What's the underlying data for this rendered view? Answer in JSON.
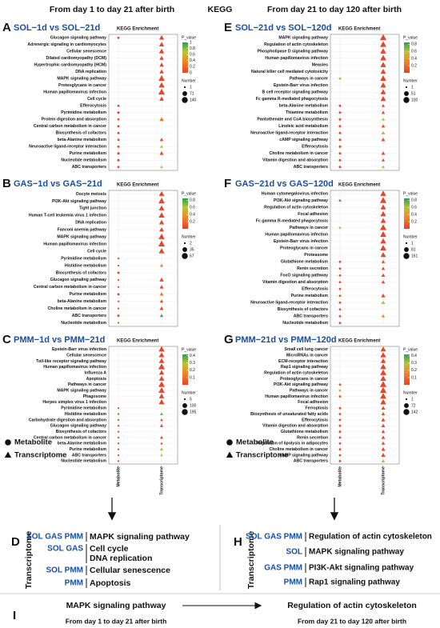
{
  "header": {
    "left": "From day 1 to day 21 after birth",
    "center": "KEGG",
    "right": "From day 21 to day 120 after birth"
  },
  "chart_data": [
    {
      "type": "dotplot",
      "letter": "A",
      "title": "SOL−1d vs SOL−21d",
      "subtitle": "KEGG Enrichment",
      "categories": [
        "Glucagon signaling pathway",
        "Adrenergic signaling in cardiomyocytes",
        "Cellular senescence",
        "Dilated cardiomyopathy (DCM)",
        "Hypertrophic cardiomyopathy (HCM)",
        "DNA replication",
        "MAPK signaling pathway",
        "Proteoglycans in cancer",
        "Human papillomavirus infection",
        "Cell cycle",
        "Efferocytosis",
        "Pyrimidine metabolism",
        "Protein digestion and absorption",
        "Central carbon metabolism in cancer",
        "Biosynthesis of cofactors",
        "beta-Alanine metabolism",
        "Neuroactive ligand-receptor interaction",
        "Purine metabolism",
        "Nucleotide metabolism",
        "ABC transporters"
      ],
      "series": [
        {
          "name": "Metabolite",
          "shape": "circle",
          "values": [
            3,
            null,
            null,
            null,
            null,
            null,
            null,
            null,
            null,
            null,
            2,
            4,
            2,
            3,
            3,
            2,
            3,
            4,
            4,
            3
          ],
          "p_values": [
            0.03,
            null,
            null,
            null,
            null,
            null,
            null,
            null,
            null,
            null,
            0.03,
            0.02,
            0.03,
            0.03,
            0.03,
            0.04,
            0.04,
            0.02,
            0.02,
            0.03
          ]
        },
        {
          "name": "Transcriptome",
          "shape": "triangle",
          "values": [
            60,
            60,
            70,
            40,
            40,
            40,
            120,
            100,
            140,
            50,
            null,
            null,
            40,
            null,
            null,
            20,
            15,
            30,
            null,
            10
          ],
          "p_values": [
            0.02,
            0.02,
            0.02,
            0.02,
            0.02,
            0.02,
            0.02,
            0.02,
            0.02,
            0.02,
            null,
            null,
            0.3,
            null,
            null,
            0.05,
            0.7,
            0.05,
            null,
            0.7
          ]
        }
      ],
      "color_label": "P_value",
      "p_lim": [
        0,
        1
      ],
      "p_ticks": [
        1,
        0.8,
        0.6,
        0.4,
        0.2,
        0
      ],
      "size_label": "Number",
      "size_ticks": [
        1,
        71,
        140
      ]
    },
    {
      "type": "dotplot",
      "letter": "B",
      "title": "GAS−1d vs GAS−21d",
      "subtitle": "KEGG Enrichment",
      "categories": [
        "Oocyte meiosis",
        "PI3K-Akt signaling pathway",
        "Tight junction",
        "Human T-cell leukemia virus 1 infection",
        "DNA replication",
        "Fanconi anemia pathway",
        "MAPK signaling pathway",
        "Human papillomavirus infection",
        "Cell cycle",
        "Pyrimidine metabolism",
        "Histidine metabolism",
        "Biosynthesis of cofactors",
        "Glucagon signaling pathway",
        "Central carbon metabolism in cancer",
        "Purine metabolism",
        "beta-Alanine metabolism",
        "Choline metabolism in cancer",
        "ABC transporters",
        "Nucleotide metabolism"
      ],
      "series": [
        {
          "name": "Metabolite",
          "shape": "circle",
          "values": [
            null,
            null,
            null,
            null,
            null,
            null,
            null,
            null,
            null,
            2,
            2,
            3,
            2,
            2,
            3,
            2,
            2,
            3,
            2
          ],
          "p_values": [
            null,
            null,
            null,
            null,
            null,
            null,
            null,
            null,
            null,
            0.03,
            0.03,
            0.03,
            0.04,
            0.04,
            0.03,
            0.04,
            0.04,
            0.03,
            0.03
          ]
        },
        {
          "name": "Transcriptome",
          "shape": "triangle",
          "values": [
            35,
            60,
            40,
            50,
            30,
            25,
            55,
            67,
            45,
            null,
            8,
            null,
            20,
            15,
            15,
            10,
            15,
            10,
            null
          ],
          "p_values": [
            0.02,
            0.02,
            0.02,
            0.02,
            0.02,
            0.02,
            0.02,
            0.02,
            0.02,
            null,
            0.3,
            null,
            0.05,
            0.05,
            0.3,
            0.05,
            0.05,
            0.8,
            null
          ]
        }
      ],
      "color_label": "P_value",
      "p_lim": [
        0,
        0.85
      ],
      "p_ticks": [
        0.8,
        0.6,
        0.4,
        0.2
      ],
      "size_label": "Number",
      "size_ticks": [
        2,
        35,
        67
      ]
    },
    {
      "type": "dotplot",
      "letter": "C",
      "title": "PMM−1d vs PMM−21d",
      "subtitle": "KEGG Enrichment",
      "categories": [
        "Epstein-Barr virus infection",
        "Cellular senescence",
        "Toll-like receptor signaling pathway",
        "Human papillomavirus infection",
        "Influenza A",
        "Apoptosis",
        "Pathways in cancer",
        "MAPK signaling pathway",
        "Phagosome",
        "Herpes simplex virus 1 infection",
        "Pyrimidine metabolism",
        "Histidine metabolism",
        "Carbohydrate digestion and absorption",
        "Glucagon signaling pathway",
        "Biosynthesis of cofactors",
        "Central carbon metabolism in cancer",
        "beta-Alanine metabolism",
        "Purine metabolism",
        "ABC transporters",
        "Nucleotide metabolism"
      ],
      "series": [
        {
          "name": "Metabolite",
          "shape": "circle",
          "values": [
            null,
            null,
            null,
            null,
            null,
            null,
            null,
            null,
            null,
            null,
            5,
            5,
            5,
            5,
            5,
            5,
            5,
            5,
            5,
            5
          ],
          "p_values": [
            null,
            null,
            null,
            null,
            null,
            null,
            null,
            null,
            null,
            null,
            0.02,
            0.02,
            0.02,
            0.02,
            0.02,
            0.02,
            0.02,
            0.02,
            0.02,
            0.02
          ]
        },
        {
          "name": "Transcriptome",
          "shape": "triangle",
          "values": [
            150,
            120,
            110,
            195,
            100,
            110,
            180,
            160,
            110,
            130,
            null,
            20,
            15,
            25,
            null,
            20,
            10,
            20,
            15,
            null
          ],
          "p_values": [
            0.01,
            0.01,
            0.01,
            0.01,
            0.01,
            0.01,
            0.01,
            0.01,
            0.01,
            0.01,
            null,
            0.35,
            0.02,
            0.02,
            null,
            0.02,
            0.02,
            0.25,
            0.3,
            null
          ]
        }
      ],
      "color_label": "P_value",
      "p_lim": [
        0,
        0.42
      ],
      "p_ticks": [
        0.4,
        0.3,
        0.2,
        0.1
      ],
      "size_label": "Number",
      "size_ticks": [
        5,
        100,
        195
      ]
    },
    {
      "type": "dotplot",
      "letter": "E",
      "title": "SOL−21d vs SOL−120d",
      "subtitle": "KEGG Enrichment",
      "categories": [
        "MAPK signaling pathway",
        "Regulation of actin cytoskeleton",
        "Phospholipase D signaling pathway",
        "Human papillomavirus infection",
        "Measles",
        "Natural killer cell mediated cytotoxicity",
        "Pathways in cancer",
        "Epstein-Barr virus infection",
        "B cell receptor signaling pathway",
        "Fc gamma R-mediated phagocytosis",
        "beta-Alanine metabolism",
        "Thiamine metabolism",
        "Pantothenate and CoA biosynthesis",
        "Linoleic acid metabolism",
        "Neuroactive ligand-receptor interaction",
        "cAMP signaling pathway",
        "Efferocytosis",
        "Choline metabolism in cancer",
        "Vitamin digestion and absorption",
        "ABC transporters"
      ],
      "series": [
        {
          "name": "Metabolite",
          "shape": "circle",
          "values": [
            null,
            null,
            null,
            null,
            null,
            null,
            3,
            null,
            null,
            null,
            3,
            3,
            3,
            3,
            3,
            3,
            3,
            3,
            3,
            3
          ],
          "p_values": [
            null,
            null,
            null,
            null,
            null,
            null,
            0.5,
            null,
            null,
            null,
            0.03,
            0.03,
            0.03,
            0.03,
            0.03,
            0.03,
            0.03,
            0.03,
            0.03,
            0.03
          ]
        },
        {
          "name": "Transcriptome",
          "shape": "triangle",
          "values": [
            100,
            90,
            70,
            80,
            70,
            60,
            80,
            70,
            60,
            60,
            10,
            12,
            10,
            15,
            20,
            20,
            null,
            20,
            10,
            10
          ],
          "p_values": [
            0.02,
            0.02,
            0.02,
            0.02,
            0.02,
            0.02,
            0.02,
            0.02,
            0.02,
            0.02,
            0.05,
            0.05,
            0.6,
            0.05,
            0.6,
            0.05,
            null,
            0.05,
            0.05,
            0.6
          ]
        }
      ],
      "color_label": "P_value",
      "p_lim": [
        0,
        0.85
      ],
      "p_ticks": [
        0.8,
        0.6,
        0.4,
        0.2
      ],
      "size_label": "Number",
      "size_ticks": [
        1,
        51,
        100
      ]
    },
    {
      "type": "dotplot",
      "letter": "F",
      "title": "GAS−21d vs GAS−120d",
      "subtitle": "KEGG Enrichment",
      "categories": [
        "Human cytomegalovirus infection",
        "PI3K-Akt signaling pathway",
        "Regulation of actin cytoskeleton",
        "Focal adhesion",
        "Fc gamma R-mediated phagocytosis",
        "Pathways in cancer",
        "Human papillomavirus infection",
        "Epstein-Barr virus infection",
        "Proteoglycans in cancer",
        "Proteasome",
        "Glutathione metabolism",
        "Renin secretion",
        "FoxO signaling pathway",
        "Vitamin digestion and absorption",
        "Efferocytosis",
        "Purine metabolism",
        "Neuroactive ligand-receptor interaction",
        "Biosynthesis of cofactors",
        "ABC transporters",
        "Nucleotide metabolism"
      ],
      "series": [
        {
          "name": "Metabolite",
          "shape": "circle",
          "values": [
            null,
            3,
            null,
            null,
            null,
            3,
            null,
            null,
            null,
            null,
            3,
            3,
            3,
            3,
            3,
            3,
            3,
            3,
            3,
            3
          ],
          "p_values": [
            null,
            0.05,
            null,
            null,
            null,
            0.6,
            null,
            null,
            null,
            null,
            0.03,
            0.03,
            0.03,
            0.03,
            0.03,
            0.03,
            0.03,
            0.03,
            0.03,
            0.03
          ]
        },
        {
          "name": "Transcriptome",
          "shape": "triangle",
          "values": [
            120,
            161,
            100,
            110,
            90,
            150,
            140,
            120,
            130,
            90,
            20,
            20,
            30,
            25,
            null,
            40,
            30,
            null,
            15,
            null
          ],
          "p_values": [
            0.02,
            0.02,
            0.02,
            0.02,
            0.02,
            0.02,
            0.02,
            0.02,
            0.02,
            0.02,
            0.05,
            0.05,
            0.05,
            0.05,
            null,
            0.05,
            0.6,
            null,
            0.3,
            null
          ]
        }
      ],
      "color_label": "P_value",
      "p_lim": [
        0,
        0.85
      ],
      "p_ticks": [
        0.8,
        0.6,
        0.4,
        0.2
      ],
      "size_label": "Number",
      "size_ticks": [
        1,
        81,
        161
      ]
    },
    {
      "type": "dotplot",
      "letter": "G",
      "title": "PMM−21d vs PMM−120d",
      "subtitle": "KEGG Enrichment",
      "categories": [
        "Small cell lung cancer",
        "MicroRNAs in cancer",
        "ECM-receptor interaction",
        "Rap1 signaling pathway",
        "Regulation of actin cytoskeleton",
        "Proteoglycans in cancer",
        "PI3K-Akt signaling pathway",
        "Pathways in cancer",
        "Human papillomavirus infection",
        "Focal adhesion",
        "Ferroptosis",
        "Biosynthesis of unsaturated fatty acids",
        "Efferocytosis",
        "Vitamin digestion and absorption",
        "Glutathione metabolism",
        "Renin secretion",
        "Regulation of lipolysis in adipocytes",
        "Choline metabolism in cancer",
        "cAMP signaling pathway",
        "ABC transporters"
      ],
      "series": [
        {
          "name": "Metabolite",
          "shape": "circle",
          "values": [
            null,
            null,
            null,
            null,
            null,
            null,
            3,
            3,
            3,
            null,
            3,
            3,
            3,
            3,
            3,
            3,
            3,
            3,
            3,
            3
          ],
          "p_values": [
            null,
            null,
            null,
            null,
            null,
            null,
            0.03,
            0.3,
            0.03,
            null,
            0.02,
            0.02,
            0.02,
            0.02,
            0.02,
            0.02,
            0.02,
            0.02,
            0.02,
            0.02
          ]
        },
        {
          "name": "Transcriptome",
          "shape": "triangle",
          "values": [
            80,
            100,
            70,
            110,
            120,
            110,
            142,
            142,
            130,
            110,
            30,
            20,
            30,
            25,
            20,
            25,
            20,
            30,
            40,
            20
          ],
          "p_values": [
            0.01,
            0.01,
            0.01,
            0.01,
            0.01,
            0.01,
            0.01,
            0.01,
            0.01,
            0.01,
            0.02,
            0.02,
            0.02,
            0.02,
            0.02,
            0.02,
            0.02,
            0.02,
            0.02,
            0.3
          ]
        }
      ],
      "color_label": "P_value",
      "p_lim": [
        0,
        0.42
      ],
      "p_ticks": [
        0.4,
        0.3,
        0.2,
        0.1
      ],
      "size_label": "Number",
      "size_ticks": [
        1,
        72,
        142
      ]
    }
  ],
  "summary": [
    {
      "letter": "D",
      "axis_label": "Transcriptome",
      "rows": [
        {
          "groups": "SOL GAS PMM",
          "pathways": [
            "MAPK signaling pathway"
          ]
        },
        {
          "groups": "SOL GAS",
          "pathways": [
            "Cell cycle",
            "DNA replication"
          ]
        },
        {
          "groups": "SOL PMM",
          "pathways": [
            "Cellular senescence"
          ]
        },
        {
          "groups": "PMM",
          "pathways": [
            "Apoptosis"
          ]
        }
      ]
    },
    {
      "letter": "H",
      "axis_label": "Transcriptome",
      "rows": [
        {
          "groups": "SOL GAS PMM",
          "pathways": [
            "Regulation of actin cytoskeleton"
          ]
        },
        {
          "groups": "SOL",
          "pathways": [
            "MAPK signaling pathway"
          ]
        },
        {
          "groups": "GAS PMM",
          "pathways": [
            "PI3K-Akt signaling pathway"
          ]
        },
        {
          "groups": "PMM",
          "pathways": [
            "Rap1 signaling pathway"
          ]
        }
      ]
    }
  ],
  "bottom": {
    "letter": "I",
    "from": "MAPK signaling pathway",
    "to": "Regulation of actin cytoskeleton",
    "from_period": "From day 1 to day 21 after birth",
    "to_period": "From day 21 to day 120 after birth"
  }
}
